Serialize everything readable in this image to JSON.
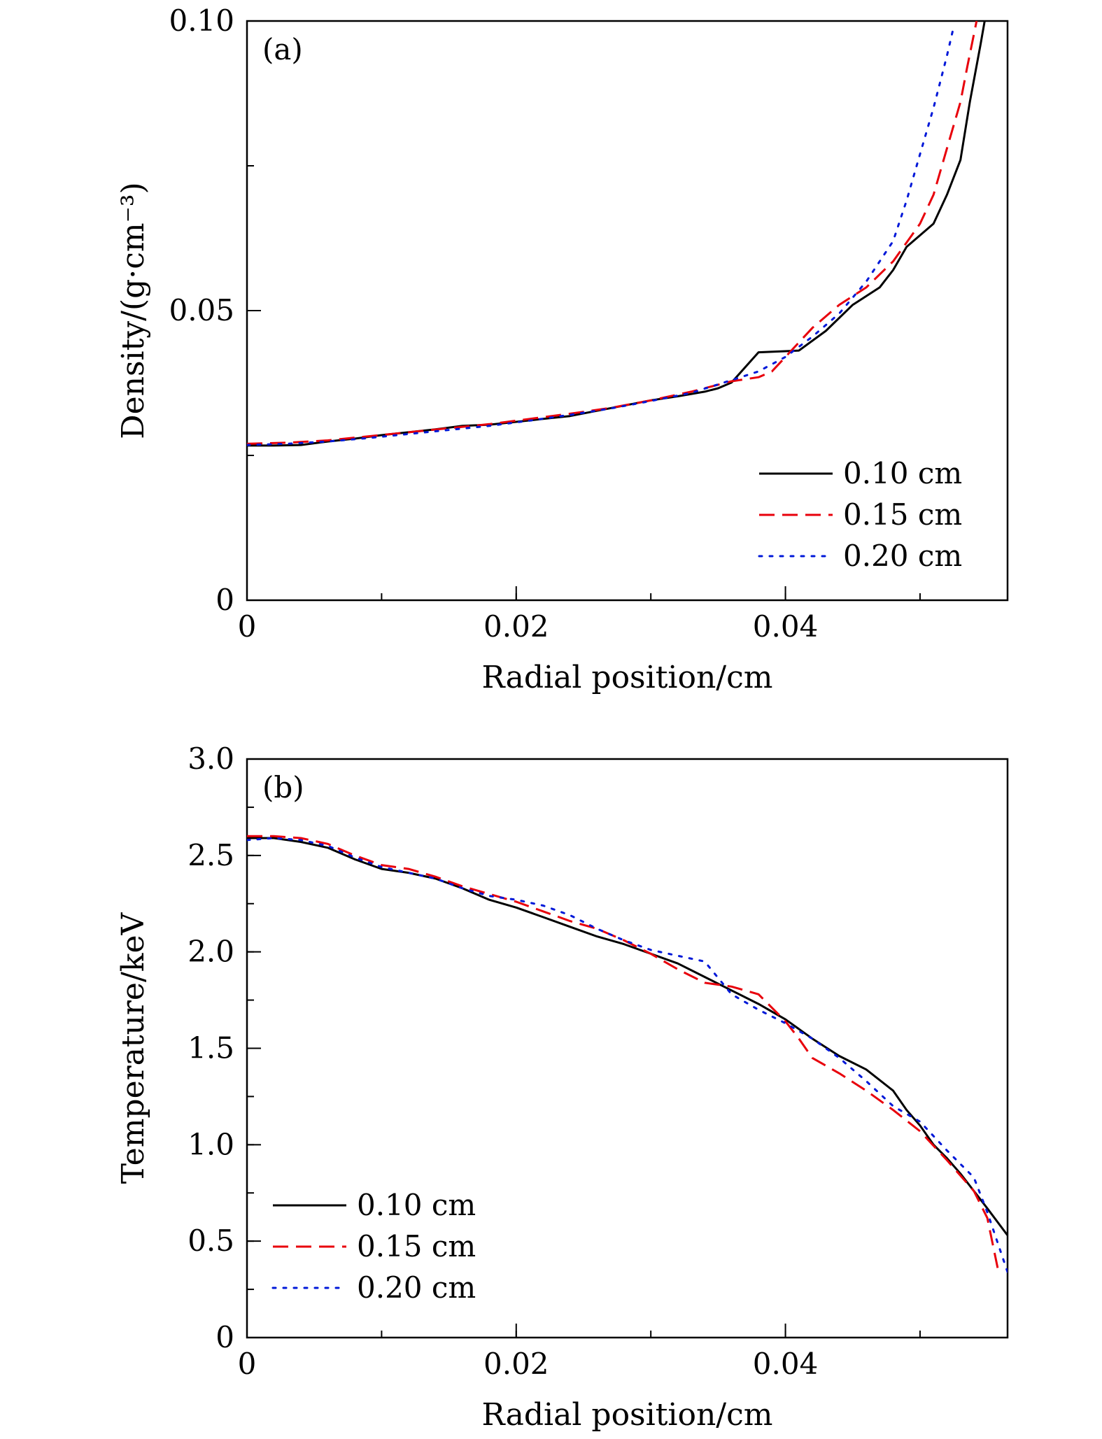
{
  "chart_data": [
    {
      "panel": "(a)",
      "type": "line",
      "xlabel": "Radial position/cm",
      "ylabel": "Density/(g·cm⁻³)",
      "xlim": [
        0,
        0.0565
      ],
      "ylim": [
        0,
        0.1
      ],
      "xticks": [
        0,
        0.02,
        0.04
      ],
      "xtick_labels": [
        "0",
        "0.02",
        "0.04"
      ],
      "yticks": [
        0,
        0.05,
        0.1
      ],
      "ytick_labels": [
        "0",
        "0.05",
        "0.10"
      ],
      "x_minor_step": 0.01,
      "y_minor_step": 0.025,
      "legend_position": "bottom-right",
      "series": [
        {
          "name": "0.10 cm",
          "color": "#000000",
          "dash": "solid",
          "x": [
            0,
            0.002,
            0.004,
            0.006,
            0.008,
            0.01,
            0.012,
            0.014,
            0.016,
            0.018,
            0.02,
            0.022,
            0.024,
            0.026,
            0.028,
            0.03,
            0.032,
            0.034,
            0.035,
            0.036,
            0.038,
            0.04,
            0.041,
            0.043,
            0.045,
            0.047,
            0.048,
            0.049,
            0.05,
            0.051,
            0.052,
            0.053,
            0.0537,
            0.0545,
            0.0548
          ],
          "values": [
            0.0267,
            0.0267,
            0.0268,
            0.0274,
            0.0279,
            0.0285,
            0.029,
            0.0295,
            0.0301,
            0.0303,
            0.0308,
            0.0313,
            0.0318,
            0.0327,
            0.0336,
            0.0345,
            0.0352,
            0.036,
            0.0366,
            0.0376,
            0.0428,
            0.043,
            0.0431,
            0.0465,
            0.051,
            0.054,
            0.057,
            0.061,
            0.063,
            0.065,
            0.07,
            0.076,
            0.086,
            0.096,
            0.1
          ]
        },
        {
          "name": "0.15 cm",
          "color": "#e8000b",
          "dash": "dashed",
          "x": [
            0,
            0.003,
            0.006,
            0.009,
            0.012,
            0.015,
            0.018,
            0.021,
            0.024,
            0.027,
            0.03,
            0.033,
            0.036,
            0.038,
            0.039,
            0.04,
            0.042,
            0.044,
            0.046,
            0.048,
            0.05,
            0.051,
            0.052,
            0.053,
            0.0535,
            0.0542
          ],
          "values": [
            0.027,
            0.0272,
            0.0276,
            0.0283,
            0.029,
            0.0297,
            0.0304,
            0.0313,
            0.0322,
            0.0332,
            0.0345,
            0.036,
            0.0378,
            0.0385,
            0.0395,
            0.042,
            0.047,
            0.051,
            0.054,
            0.0585,
            0.065,
            0.07,
            0.078,
            0.086,
            0.092,
            0.1
          ]
        },
        {
          "name": "0.20 cm",
          "color": "#0018d8",
          "dash": "dotted",
          "x": [
            0,
            0.003,
            0.006,
            0.009,
            0.012,
            0.015,
            0.018,
            0.021,
            0.024,
            0.027,
            0.03,
            0.033,
            0.036,
            0.038,
            0.04,
            0.042,
            0.044,
            0.046,
            0.048,
            0.049,
            0.05,
            0.051,
            0.052,
            0.0525
          ],
          "values": [
            0.0268,
            0.027,
            0.0274,
            0.028,
            0.0287,
            0.0294,
            0.0301,
            0.031,
            0.032,
            0.0331,
            0.0344,
            0.0358,
            0.038,
            0.0395,
            0.042,
            0.0455,
            0.0495,
            0.055,
            0.062,
            0.069,
            0.077,
            0.085,
            0.094,
            0.099
          ]
        }
      ]
    },
    {
      "panel": "(b)",
      "type": "line",
      "xlabel": "Radial position/cm",
      "ylabel": "Temperature/keV",
      "xlim": [
        0,
        0.0565
      ],
      "ylim": [
        0,
        3.0
      ],
      "xticks": [
        0,
        0.02,
        0.04
      ],
      "xtick_labels": [
        "0",
        "0.02",
        "0.04"
      ],
      "yticks": [
        0,
        0.5,
        1.0,
        1.5,
        2.0,
        2.5,
        3.0
      ],
      "ytick_labels": [
        "0",
        "0.5",
        "1.0",
        "1.5",
        "2.0",
        "2.5",
        "3.0"
      ],
      "x_minor_step": 0.01,
      "y_minor_step": 0.25,
      "legend_position": "bottom-left",
      "series": [
        {
          "name": "0.10 cm",
          "color": "#000000",
          "dash": "solid",
          "x": [
            0,
            0.002,
            0.004,
            0.006,
            0.008,
            0.01,
            0.012,
            0.014,
            0.016,
            0.018,
            0.02,
            0.022,
            0.024,
            0.026,
            0.028,
            0.03,
            0.032,
            0.034,
            0.036,
            0.038,
            0.04,
            0.042,
            0.044,
            0.046,
            0.048,
            0.049,
            0.05,
            0.051,
            0.052,
            0.053,
            0.054,
            0.055,
            0.0565
          ],
          "values": [
            2.59,
            2.59,
            2.57,
            2.54,
            2.48,
            2.43,
            2.41,
            2.38,
            2.33,
            2.27,
            2.23,
            2.18,
            2.13,
            2.08,
            2.04,
            1.99,
            1.94,
            1.87,
            1.8,
            1.73,
            1.65,
            1.55,
            1.46,
            1.39,
            1.28,
            1.18,
            1.1,
            1.0,
            0.93,
            0.85,
            0.76,
            0.67,
            0.53
          ]
        },
        {
          "name": "0.15 cm",
          "color": "#e8000b",
          "dash": "dashed",
          "x": [
            0,
            0.002,
            0.004,
            0.006,
            0.008,
            0.01,
            0.012,
            0.014,
            0.016,
            0.018,
            0.02,
            0.022,
            0.024,
            0.026,
            0.028,
            0.03,
            0.032,
            0.034,
            0.036,
            0.038,
            0.04,
            0.041,
            0.042,
            0.044,
            0.046,
            0.048,
            0.05,
            0.052,
            0.054,
            0.055,
            0.0558
          ],
          "values": [
            2.6,
            2.6,
            2.59,
            2.56,
            2.5,
            2.45,
            2.43,
            2.39,
            2.34,
            2.3,
            2.26,
            2.21,
            2.16,
            2.12,
            2.06,
            1.99,
            1.91,
            1.84,
            1.82,
            1.78,
            1.64,
            1.55,
            1.45,
            1.37,
            1.28,
            1.18,
            1.07,
            0.92,
            0.76,
            0.62,
            0.35
          ]
        },
        {
          "name": "0.20 cm",
          "color": "#0018d8",
          "dash": "dotted",
          "x": [
            0,
            0.002,
            0.004,
            0.006,
            0.008,
            0.01,
            0.012,
            0.014,
            0.016,
            0.018,
            0.02,
            0.022,
            0.024,
            0.026,
            0.028,
            0.03,
            0.032,
            0.034,
            0.036,
            0.038,
            0.04,
            0.042,
            0.044,
            0.046,
            0.048,
            0.05,
            0.052,
            0.054,
            0.055,
            0.0565
          ],
          "values": [
            2.58,
            2.59,
            2.58,
            2.55,
            2.49,
            2.44,
            2.41,
            2.38,
            2.33,
            2.29,
            2.27,
            2.24,
            2.19,
            2.12,
            2.06,
            2.01,
            1.98,
            1.95,
            1.78,
            1.7,
            1.63,
            1.55,
            1.45,
            1.33,
            1.2,
            1.12,
            0.97,
            0.83,
            0.65,
            0.34
          ]
        }
      ]
    }
  ]
}
